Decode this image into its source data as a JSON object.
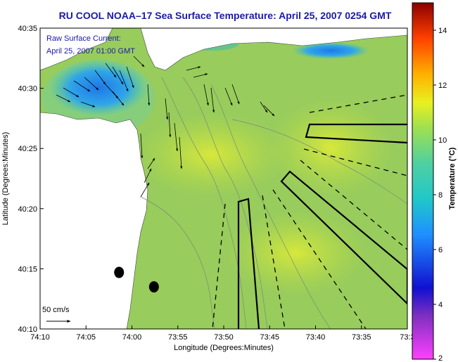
{
  "title": "RU COOL  NOAA–17  Sea Surface Temperature:  April 25, 2007 0254 GMT",
  "legend": {
    "line1": "Raw Surface Current:",
    "line2": "April 25, 2007 01:00 GMT",
    "scale_label": "50 cm/s"
  },
  "colors": {
    "title": "#1a1aa8",
    "water_base": "#9ccc54",
    "cold_water": "#2a8ee6",
    "land": "#ffffff",
    "vectors": "#000000",
    "contours": "#7a8a7a"
  },
  "chart_data": {
    "type": "heatmap",
    "title": "RU COOL  NOAA–17  Sea Surface Temperature:  April 25, 2007 0254 GMT",
    "xlabel": "Longitude (Degrees:Minutes)",
    "ylabel": "Latitude (Degrees:Minutes)",
    "x_ticks": [
      "74:10",
      "74:05",
      "74:00",
      "73:55",
      "73:50",
      "73:45",
      "73:40",
      "73:35",
      "73:3"
    ],
    "y_ticks": [
      "40:35",
      "40:30",
      "40:25",
      "40:20",
      "40:15",
      "40:10"
    ],
    "xlim_minutes_west": [
      70,
      30
    ],
    "ylim_minutes_north": [
      10,
      35
    ],
    "colorbar": {
      "label": "Temperature (°C)",
      "range": [
        2,
        15
      ],
      "ticks": [
        "14",
        "12",
        "10",
        "8",
        "6",
        "4",
        "2"
      ]
    },
    "stations": [
      {
        "lon": "74:01.4",
        "lat": "40:14.7"
      },
      {
        "lon": "73:57.6",
        "lat": "40:13.5"
      }
    ]
  }
}
